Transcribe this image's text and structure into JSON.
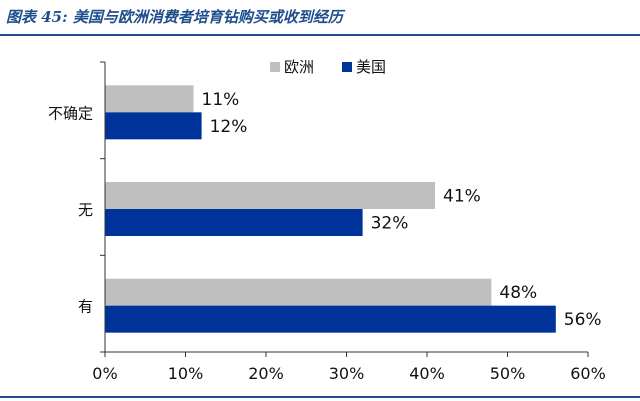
{
  "figure": {
    "title": "图表 45: 美国与欧洲消费者培育钻购买或收到经历"
  },
  "colors": {
    "title": "#1f4e8c",
    "rule": "#1f4e8c",
    "axis": "#333333",
    "text": "#111111"
  },
  "chart_data": {
    "type": "bar",
    "orientation": "horizontal",
    "title": "",
    "xlabel": "",
    "ylabel": "",
    "categories": [
      "不确定",
      "无",
      "有"
    ],
    "series": [
      {
        "name": "欧洲",
        "values": [
          11,
          41,
          48
        ],
        "color": "#bfbfbf"
      },
      {
        "name": "美国",
        "values": [
          12,
          32,
          56
        ],
        "color": "#003399"
      }
    ],
    "value_labels": [
      [
        "11%",
        "41%",
        "48%"
      ],
      [
        "12%",
        "32%",
        "56%"
      ]
    ],
    "xlim": [
      0,
      60
    ],
    "x_ticks": [
      0,
      10,
      20,
      30,
      40,
      50,
      60
    ],
    "x_tick_labels": [
      "0%",
      "10%",
      "20%",
      "30%",
      "40%",
      "50%",
      "60%"
    ],
    "grid": false,
    "legend_position": "top-right"
  }
}
